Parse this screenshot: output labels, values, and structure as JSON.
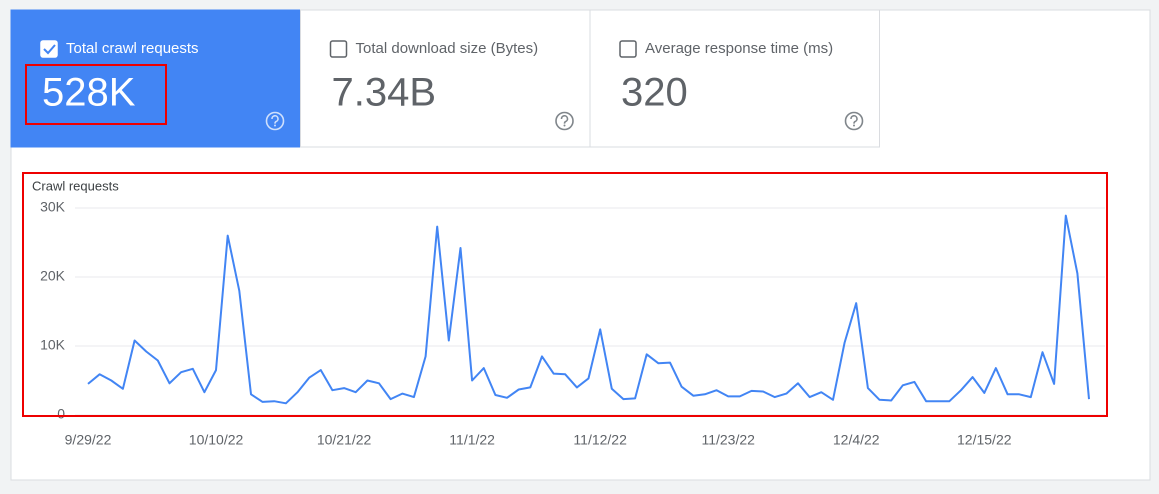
{
  "cards": [
    {
      "label": "Total crawl requests",
      "value": "528K",
      "checked": true
    },
    {
      "label": "Total download size (Bytes)",
      "value": "7.34B",
      "checked": false
    },
    {
      "label": "Average response time (ms)",
      "value": "320",
      "checked": false
    }
  ],
  "chart_data": {
    "type": "line",
    "y_label": "Crawl requests",
    "color": "#4285f4",
    "grid": true,
    "categories": [
      "9/29/22",
      null,
      null,
      null,
      null,
      null,
      null,
      null,
      null,
      null,
      null,
      "10/10/22",
      null,
      null,
      null,
      null,
      null,
      null,
      null,
      null,
      null,
      null,
      "10/21/22",
      null,
      null,
      null,
      null,
      null,
      null,
      null,
      null,
      null,
      null,
      "11/1/22",
      null,
      null,
      null,
      null,
      null,
      null,
      null,
      null,
      null,
      null,
      "11/12/22",
      null,
      null,
      null,
      null,
      null,
      null,
      null,
      null,
      null,
      null,
      "11/23/22",
      null,
      null,
      null,
      null,
      null,
      null,
      null,
      null,
      null,
      null,
      "12/4/22",
      null,
      null,
      null,
      null,
      null,
      null,
      null,
      null,
      null,
      null,
      "12/15/22",
      null,
      null,
      null,
      null,
      null,
      null,
      null,
      null,
      null
    ],
    "values": [
      4500,
      5900,
      5000,
      3800,
      10800,
      9200,
      7900,
      4600,
      6200,
      6700,
      3300,
      6500,
      26000,
      18000,
      3000,
      1900,
      2000,
      1700,
      3300,
      5400,
      6500,
      3600,
      3900,
      3300,
      5000,
      4600,
      2300,
      3100,
      2600,
      8500,
      27300,
      10800,
      24200,
      5000,
      6800,
      2900,
      2500,
      3700,
      4000,
      8500,
      6000,
      5900,
      4000,
      5300,
      12400,
      3800,
      2300,
      2400,
      8800,
      7500,
      7600,
      4100,
      2800,
      3000,
      3600,
      2700,
      2700,
      3500,
      3400,
      2600,
      3100,
      4600,
      2600,
      3300,
      2200,
      10500,
      16200,
      3900,
      2200,
      2100,
      4300,
      4800,
      2000,
      2000,
      2000,
      3600,
      5500,
      3200,
      6800,
      3000,
      3000,
      2600,
      9100,
      4500,
      28900,
      20500,
      2300
    ],
    "ylim": [
      0,
      30000
    ],
    "yticks": [
      0,
      {
        "value": 10000,
        "label": "10K"
      },
      {
        "value": 20000,
        "label": "20K"
      },
      {
        "value": 30000,
        "label": "30K"
      }
    ]
  }
}
